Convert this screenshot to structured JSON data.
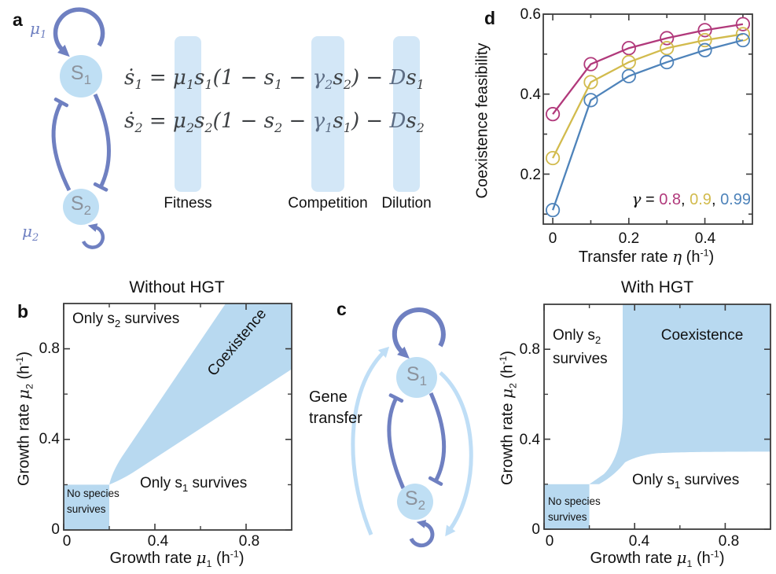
{
  "colors": {
    "region_fill": "#b8d9f0",
    "band_fill": "#d3e7f7",
    "node_fill": "#bfdff4",
    "node_text": "#8c939d",
    "arrow_dark": "#6f80c1",
    "arrow_light": "#bfdef6",
    "equation_text": "#3e4144",
    "equation_highlight": "#5d6d84",
    "axis": "#3d3d3d",
    "ink": "#1a1a1a",
    "series_magenta": "#b1397b",
    "series_yellow": "#d2bb4d",
    "series_blue": "#4e83ba"
  },
  "panel_a": {
    "label": "a",
    "mu1": {
      "base": "μ",
      "sub": "1"
    },
    "mu2": {
      "base": "μ",
      "sub": "2"
    },
    "node1": {
      "base": "S",
      "sub": "1"
    },
    "node2": {
      "base": "S",
      "sub": "2"
    },
    "equations": {
      "line1": [
        {
          "t": "ṡ",
          "sub": "1"
        },
        {
          "t": " = "
        },
        {
          "t": "μ",
          "sub": "1"
        },
        {
          "t": "s",
          "sub": "1"
        },
        {
          "t": "(1 − "
        },
        {
          "t": "s",
          "sub": "1"
        },
        {
          "t": " − "
        },
        {
          "t": "γ",
          "sub": "2",
          "hl": true
        },
        {
          "t": "s",
          "sub": "2"
        },
        {
          "t": ") − "
        },
        {
          "t": "D",
          "hl": true
        },
        {
          "t": "s",
          "sub": "1"
        }
      ],
      "line2": [
        {
          "t": "ṡ",
          "sub": "2"
        },
        {
          "t": " = "
        },
        {
          "t": "μ",
          "sub": "2"
        },
        {
          "t": "s",
          "sub": "2"
        },
        {
          "t": "(1 − "
        },
        {
          "t": "s",
          "sub": "2"
        },
        {
          "t": " − "
        },
        {
          "t": "γ",
          "sub": "1",
          "hl": true
        },
        {
          "t": "s",
          "sub": "1"
        },
        {
          "t": ") − "
        },
        {
          "t": "D",
          "hl": true
        },
        {
          "t": "s",
          "sub": "2"
        }
      ]
    },
    "annotations": [
      "Fitness",
      "Competition",
      "Dilution"
    ]
  },
  "panel_b": {
    "label": "b"
  },
  "panel_c": {
    "label": "c",
    "gene_transfer": {
      "line1": "Gene",
      "line2": "transfer"
    },
    "node1": {
      "base": "S",
      "sub": "1"
    },
    "node2": {
      "base": "S",
      "sub": "2"
    }
  },
  "panel_d": {
    "label": "d"
  },
  "chart_data": [
    {
      "id": "panel_d_line_chart",
      "type": "line",
      "title": "",
      "xlabel": "Transfer rate η (h-1)",
      "ylabel": "Coexistence feasibility",
      "xlabel_parts": {
        "pre": "Transfer rate ",
        "sym": "η",
        "unit": " (h",
        "sup": "-1",
        "post": ")"
      },
      "x": [
        0,
        0.1,
        0.2,
        0.3,
        0.4,
        0.5
      ],
      "series": [
        {
          "name": "γ = 0.8",
          "color": "#b1397b",
          "values": [
            0.35,
            0.475,
            0.515,
            0.54,
            0.56,
            0.575
          ]
        },
        {
          "name": "γ = 0.9",
          "color": "#d2bb4d",
          "values": [
            0.24,
            0.43,
            0.48,
            0.515,
            0.535,
            0.55
          ]
        },
        {
          "name": "γ = 0.99",
          "color": "#4e83ba",
          "values": [
            0.11,
            0.385,
            0.445,
            0.48,
            0.51,
            0.535
          ]
        }
      ],
      "xlim": [
        -0.025,
        0.525
      ],
      "ylim": [
        0.075,
        0.6
      ],
      "xticks": {
        "major": [
          0,
          0.2,
          0.4
        ],
        "labels": [
          "0",
          "0.2",
          "0.4"
        ],
        "minor": [
          0.1,
          0.3,
          0.5
        ]
      },
      "yticks": {
        "major": [
          0.2,
          0.4,
          0.6
        ],
        "labels": [
          "0.2",
          "0.4",
          "0.6"
        ],
        "minor": [
          0.1,
          0.3,
          0.5
        ]
      },
      "legend": {
        "var": "γ",
        "eq": " = ",
        "sep": ", ",
        "values": [
          "0.8",
          "0.9",
          "0.99"
        ]
      },
      "grid": false,
      "marker": "open-circle"
    },
    {
      "id": "panel_b_phase_diagram",
      "type": "area",
      "title": "Without HGT",
      "xlabel": "Growth rate μ1 (h-1)",
      "ylabel": "Growth rate μ2 (h-1)",
      "xlabel_parts": {
        "pre": "Growth rate ",
        "sym": "μ",
        "sub": "1",
        "unit": " (h",
        "sup": "-1",
        "post": ")"
      },
      "ylabel_parts": {
        "pre": "Growth rate ",
        "sym": "μ",
        "sub": "2",
        "unit": " (h",
        "sup": "-1",
        "post": ")"
      },
      "xlim": [
        0,
        1
      ],
      "ylim": [
        0,
        1
      ],
      "xticks": {
        "major": [
          0,
          0.4,
          0.8
        ],
        "labels": [
          "0",
          "0.4",
          "0.8"
        ],
        "minor": [
          0.2,
          0.6
        ]
      },
      "yticks": {
        "major": [
          0,
          0.4,
          0.8
        ],
        "labels": [
          "0",
          "0.4",
          "0.8"
        ],
        "minor": [
          0.2,
          0.6
        ]
      },
      "regions": {
        "only_s2": {
          "line1_pre": "Only s",
          "line1_sub": "2",
          "line1_post": " survives"
        },
        "coexistence": "Coexistence",
        "only_s1": {
          "line1_pre": "Only s",
          "line1_sub": "1",
          "line1_post": " survives"
        },
        "none": {
          "line1": "No species",
          "line2": "survives"
        }
      },
      "region_geometry": {
        "no_species_rect": [
          0,
          0,
          0.2,
          0.2
        ],
        "coexistence_band": {
          "apex": [
            0.2,
            0.2
          ],
          "upper_edge_top_intercept": [
            0.71,
            1.0
          ],
          "lower_edge_right_intercept": [
            1.0,
            0.71
          ]
        }
      }
    },
    {
      "id": "panel_c_phase_diagram",
      "type": "area",
      "title": "With HGT",
      "xlabel": "Growth rate μ1 (h-1)",
      "ylabel": "Growth rate μ2 (h-1)",
      "xlabel_parts": {
        "pre": "Growth rate ",
        "sym": "μ",
        "sub": "1",
        "unit": " (h",
        "sup": "-1",
        "post": ")"
      },
      "ylabel_parts": {
        "pre": "Growth rate ",
        "sym": "μ",
        "sub": "2",
        "unit": " (h",
        "sup": "-1",
        "post": ")"
      },
      "xlim": [
        0,
        1
      ],
      "ylim": [
        0,
        1
      ],
      "xticks": {
        "major": [
          0,
          0.4,
          0.8
        ],
        "labels": [
          "0",
          "0.4",
          "0.8"
        ],
        "minor": [
          0.2,
          0.6
        ]
      },
      "yticks": {
        "major": [
          0,
          0.4,
          0.8
        ],
        "labels": [
          "0",
          "0.4",
          "0.8"
        ],
        "minor": [
          0.2,
          0.6
        ]
      },
      "regions": {
        "only_s2": {
          "line1_pre": "Only s",
          "line1_sub": "2",
          "line2": "survives"
        },
        "coexistence": "Coexistence",
        "only_s1": {
          "line1_pre": "Only s",
          "line1_sub": "1",
          "line1_post": " survives"
        },
        "none": {
          "line1": "No species",
          "line2": "survives"
        }
      },
      "region_geometry": {
        "no_species_rect": [
          0,
          0,
          0.2,
          0.2
        ],
        "coexistence_left_boundary_x": 0.35,
        "coexistence_bottom_asymptote_y": 0.345,
        "neck_point": [
          0.2,
          0.2
        ]
      }
    }
  ]
}
